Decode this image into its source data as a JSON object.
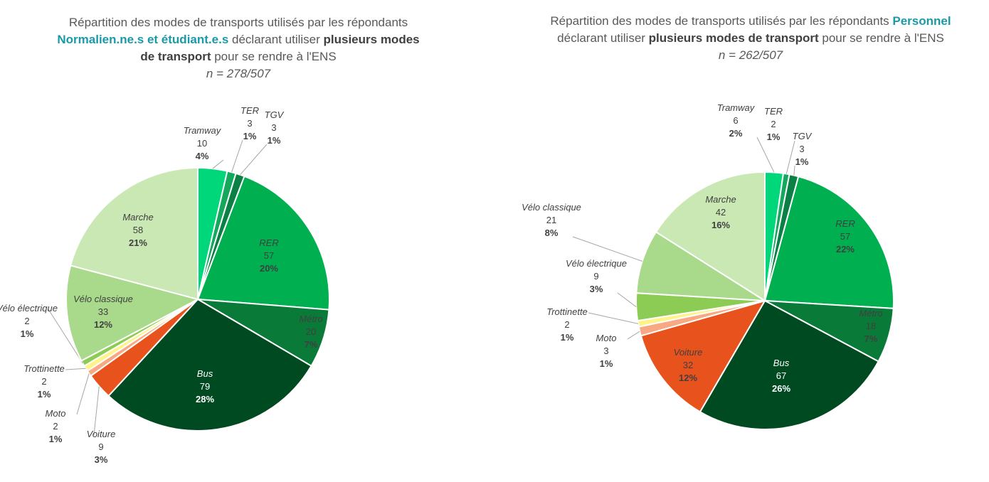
{
  "chart_data": [
    {
      "type": "pie",
      "title_segments": [
        {
          "text": "Répartition des modes de transports utilisés par les répondants ",
          "style": "normal"
        },
        {
          "text": "Normalien.ne.s et étudiant.e.s",
          "style": "accent"
        },
        {
          "text": " déclarant utiliser ",
          "style": "normal"
        },
        {
          "text": "plusieurs modes de transport",
          "style": "strong"
        },
        {
          "text": " pour se rendre à l'ENS",
          "style": "normal"
        }
      ],
      "subtitle": "n = 278/507",
      "categories": [
        "Tramway",
        "TER",
        "TGV",
        "RER",
        "Métro",
        "Bus",
        "Voiture",
        "Moto",
        "Trottinette",
        "Vélo électrique",
        "Vélo classique",
        "Marche"
      ],
      "values": [
        10,
        3,
        3,
        57,
        20,
        79,
        9,
        2,
        2,
        2,
        33,
        58
      ],
      "percent_labels": [
        "4%",
        "1%",
        "1%",
        "20%",
        "7%",
        "28%",
        "3%",
        "1%",
        "1%",
        "1%",
        "12%",
        "21%"
      ]
    },
    {
      "type": "pie",
      "title_segments": [
        {
          "text": "Répartition des modes de transports utilisés par les répondants ",
          "style": "normal"
        },
        {
          "text": "Personnel",
          "style": "accent"
        },
        {
          "text": " déclarant utiliser ",
          "style": "normal"
        },
        {
          "text": "plusieurs modes de transport",
          "style": "strong"
        },
        {
          "text": " pour se rendre à l'ENS",
          "style": "normal"
        }
      ],
      "subtitle": "n = 262/507",
      "categories": [
        "Tramway",
        "TER",
        "TGV",
        "RER",
        "Métro",
        "Bus",
        "Voiture",
        "Moto",
        "Trottinette",
        "Vélo électrique",
        "Vélo classique",
        "Marche"
      ],
      "values": [
        6,
        2,
        3,
        57,
        18,
        67,
        32,
        3,
        2,
        9,
        21,
        42
      ],
      "percent_labels": [
        "2%",
        "1%",
        "1%",
        "22%",
        "7%",
        "26%",
        "12%",
        "1%",
        "1%",
        "3%",
        "8%",
        "16%"
      ]
    }
  ],
  "colors": {
    "Tramway": "#00d67a",
    "TER": "#14a85c",
    "TGV": "#0a8044",
    "RER": "#00b050",
    "Métro": "#0a7a38",
    "Bus": "#004a22",
    "Voiture": "#e8521c",
    "Moto": "#f8a882",
    "Trottinette": "#fff38a",
    "Vélo électrique": "#8ccc54",
    "Vélo classique": "#a9d98a",
    "Marche": "#c9e8b4"
  }
}
